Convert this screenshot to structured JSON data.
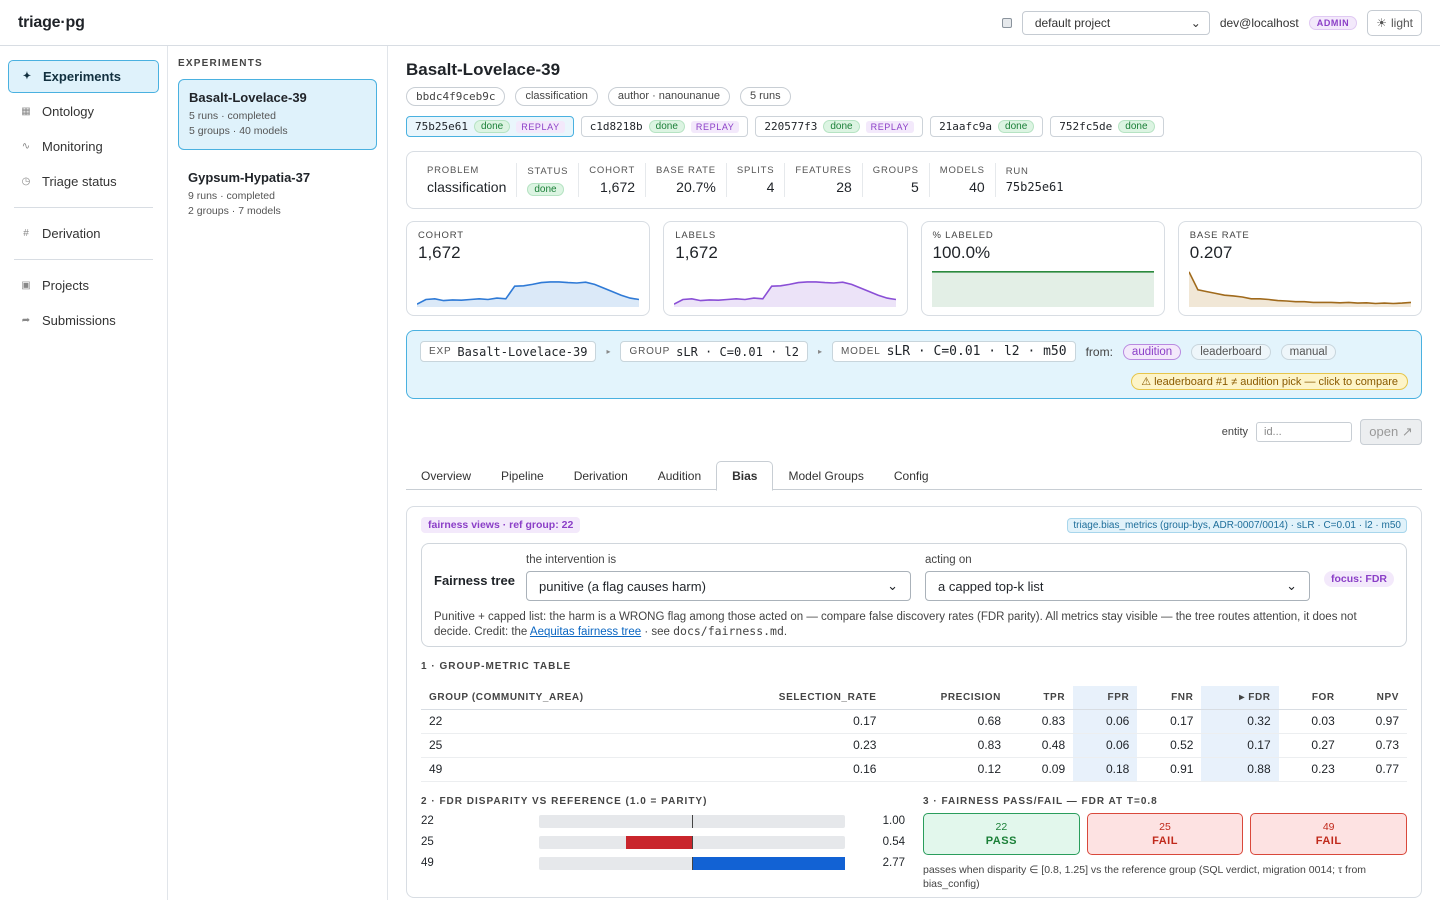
{
  "app": {
    "brand": "triage·pg",
    "project": "default project",
    "user": "dev@localhost",
    "role": "ADMIN",
    "theme_label": "light"
  },
  "nav": {
    "items": [
      {
        "label": "Experiments",
        "icon": "sparkle-icon",
        "glyph": "✦"
      },
      {
        "label": "Ontology",
        "icon": "grid-icon",
        "glyph": "▦"
      },
      {
        "label": "Monitoring",
        "icon": "pulse-icon",
        "glyph": "∿"
      },
      {
        "label": "Triage status",
        "icon": "target-icon",
        "glyph": "◷"
      },
      {
        "label": "Derivation",
        "icon": "hash-icon",
        "glyph": "#"
      },
      {
        "label": "Projects",
        "icon": "folder-icon",
        "glyph": "▣"
      },
      {
        "label": "Submissions",
        "icon": "share-icon",
        "glyph": "➦"
      }
    ]
  },
  "experiments": {
    "header": "EXPERIMENTS",
    "items": [
      {
        "name": "Basalt-Lovelace-39",
        "line1": "5 runs · completed",
        "line2": "5 groups · 40 models"
      },
      {
        "name": "Gypsum-Hypatia-37",
        "line1": "9 runs · completed",
        "line2": "2 groups · 7 models"
      }
    ]
  },
  "detail": {
    "title": "Basalt-Lovelace-39",
    "chips": [
      "bbdc4f9ceb9c",
      "classification",
      "author · nanounanue",
      "5 runs"
    ],
    "runs": [
      {
        "id": "75b25e61",
        "status": "done",
        "replay": "REPLAY"
      },
      {
        "id": "c1d8218b",
        "status": "done",
        "replay": "REPLAY"
      },
      {
        "id": "220577f3",
        "status": "done",
        "replay": "REPLAY"
      },
      {
        "id": "21aafc9a",
        "status": "done",
        "replay": ""
      },
      {
        "id": "752fc5de",
        "status": "done",
        "replay": ""
      }
    ],
    "stats": {
      "problem": {
        "label": "PROBLEM",
        "value": "classification"
      },
      "status": {
        "label": "STATUS",
        "value": "done"
      },
      "cohort": {
        "label": "COHORT",
        "value": "1,672"
      },
      "base_rate": {
        "label": "BASE RATE",
        "value": "20.7%"
      },
      "splits": {
        "label": "SPLITS",
        "value": "4"
      },
      "features": {
        "label": "FEATURES",
        "value": "28"
      },
      "groups": {
        "label": "GROUPS",
        "value": "5"
      },
      "models": {
        "label": "MODELS",
        "value": "40"
      },
      "run": {
        "label": "RUN",
        "value": "75b25e61"
      }
    },
    "sparks": [
      {
        "label": "COHORT",
        "value": "1,672",
        "color": "#2f7ad6",
        "fill": "#dbe9f8",
        "points": [
          0.05,
          0.18,
          0.2,
          0.15,
          0.17,
          0.16,
          0.18,
          0.2,
          0.18,
          0.22,
          0.2,
          0.55,
          0.56,
          0.6,
          0.65,
          0.67,
          0.67,
          0.65,
          0.64,
          0.66,
          0.6,
          0.5,
          0.4,
          0.3,
          0.22,
          0.18
        ]
      },
      {
        "label": "LABELS",
        "value": "1,672",
        "color": "#8a4fd6",
        "fill": "#ece3f8",
        "points": [
          0.05,
          0.18,
          0.2,
          0.15,
          0.17,
          0.16,
          0.18,
          0.2,
          0.18,
          0.22,
          0.2,
          0.55,
          0.56,
          0.6,
          0.65,
          0.67,
          0.67,
          0.65,
          0.64,
          0.66,
          0.6,
          0.5,
          0.4,
          0.3,
          0.22,
          0.18
        ]
      },
      {
        "label": "% LABELED",
        "value": "100.0%",
        "color": "#2b8a3e",
        "fill": "#e3efe6",
        "points": [
          0.95,
          0.95,
          0.95,
          0.95,
          0.95,
          0.95,
          0.95,
          0.95,
          0.95,
          0.95,
          0.95,
          0.95,
          0.95,
          0.95,
          0.95,
          0.95,
          0.95,
          0.95,
          0.95,
          0.95,
          0.95,
          0.95,
          0.95,
          0.95,
          0.95,
          0.95
        ]
      },
      {
        "label": "BASE RATE",
        "value": "0.207",
        "color": "#a06a1c",
        "fill": "#f1e7d6",
        "points": [
          0.95,
          0.45,
          0.4,
          0.35,
          0.3,
          0.28,
          0.25,
          0.2,
          0.2,
          0.18,
          0.15,
          0.14,
          0.12,
          0.12,
          0.1,
          0.1,
          0.1,
          0.09,
          0.1,
          0.08,
          0.09,
          0.07,
          0.08,
          0.07,
          0.08,
          0.1
        ]
      }
    ],
    "context": {
      "exp_key": "EXP",
      "exp_val": "Basalt-Lovelace-39",
      "group_key": "GROUP",
      "group_val": "sLR · C=0.01 · l2",
      "model_key": "MODEL",
      "model_val": "sLR · C=0.01 · l2 · m50",
      "from_label": "from:",
      "sources": [
        "audition",
        "leaderboard",
        "manual"
      ],
      "warning": "⚠ leaderboard #1 ≠ audition pick — click to compare"
    },
    "entity": {
      "label": "entity",
      "placeholder": "id...",
      "open_label": "open ↗"
    },
    "tabs": [
      "Overview",
      "Pipeline",
      "Derivation",
      "Audition",
      "Bias",
      "Model Groups",
      "Config"
    ],
    "active_tab": "Bias"
  },
  "bias": {
    "views_pill": "fairness views · ref group: 22",
    "source_pill": "triage.bias_metrics (group-bys, ADR-0007/0014) · sLR · C=0.01 · l2 · m50",
    "tree": {
      "title": "Fairness tree",
      "intervention_label": "the intervention is",
      "intervention_value": "punitive (a flag causes harm)",
      "acting_label": "acting on",
      "acting_value": "a capped top-k list",
      "focus": "focus: FDR",
      "text_a": "Punitive + capped list: the harm is a WRONG flag among those acted on — compare false discovery rates (FDR parity). All metrics stay visible — the tree routes attention, it does not decide. Credit: the ",
      "link": "Aequitas fairness tree",
      "text_b": " · see ",
      "code": "docs/fairness.md",
      "text_c": "."
    },
    "table_title": "1 · GROUP-METRIC TABLE",
    "columns": [
      "GROUP (COMMUNITY_AREA)",
      "SELECTION_RATE",
      "PRECISION",
      "TPR",
      "FPR",
      "FNR",
      "▸ FDR",
      "FOR",
      "NPV"
    ],
    "rows": [
      [
        "22",
        "0.17",
        "0.68",
        "0.83",
        "0.06",
        "0.17",
        "0.32",
        "0.03",
        "0.97"
      ],
      [
        "25",
        "0.23",
        "0.83",
        "0.48",
        "0.06",
        "0.52",
        "0.17",
        "0.27",
        "0.73"
      ],
      [
        "49",
        "0.16",
        "0.12",
        "0.09",
        "0.18",
        "0.91",
        "0.88",
        "0.23",
        "0.77"
      ]
    ],
    "disparity_title": "2 · FDR DISPARITY VS REFERENCE (1.0 = PARITY)",
    "disparity": [
      {
        "group": "22",
        "value": 1.0,
        "label": "1.00"
      },
      {
        "group": "25",
        "value": 0.54,
        "label": "0.54"
      },
      {
        "group": "49",
        "value": 2.77,
        "label": "2.77"
      }
    ],
    "disparity_colors": {
      "below": "#c9252c",
      "above": "#1262d4"
    },
    "passfail_title": "3 · FAIRNESS PASS/FAIL — FDR AT T=0.8",
    "passfail": [
      {
        "group": "22",
        "verdict": "PASS"
      },
      {
        "group": "25",
        "verdict": "FAIL"
      },
      {
        "group": "49",
        "verdict": "FAIL"
      }
    ],
    "passfail_note": "passes when disparity ∈ [0.8, 1.25] vs the reference group (SQL verdict, migration 0014; τ from bias_config)"
  }
}
